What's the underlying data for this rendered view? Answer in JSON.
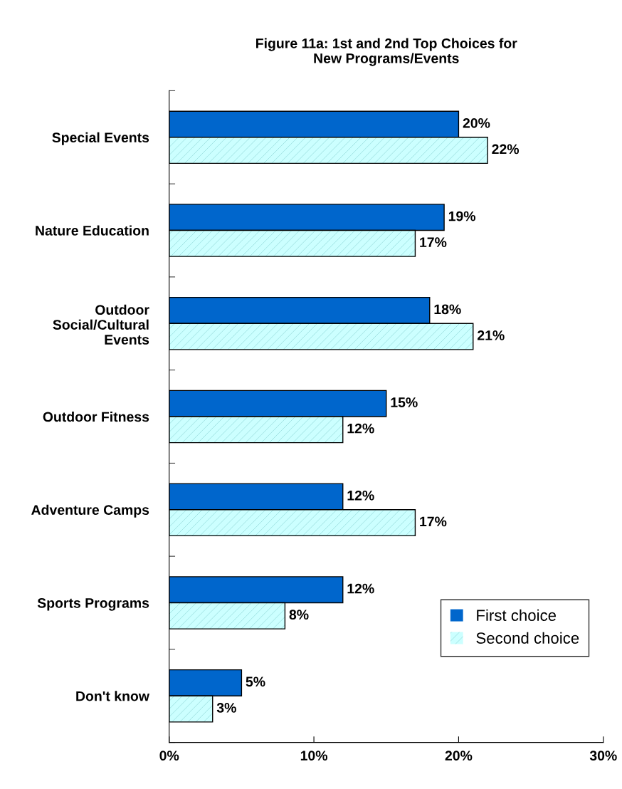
{
  "chart_data": {
    "type": "bar",
    "orientation": "horizontal",
    "title": "Figure 11a: 1st and 2nd Top Choices for\nNew Programs/Events",
    "categories": [
      "Special Events",
      "Nature Education",
      "Outdoor\nSocial/Cultural\nEvents",
      "Outdoor Fitness",
      "Adventure Camps",
      "Sports Programs",
      "Don't know"
    ],
    "series": [
      {
        "name": "First choice",
        "color": "#0066cc",
        "values": [
          20,
          19,
          18,
          15,
          12,
          12,
          5
        ],
        "value_labels": [
          "20%",
          "19%",
          "18%",
          "15%",
          "12%",
          "12%",
          "5%"
        ]
      },
      {
        "name": "Second choice",
        "color": "#ccffff",
        "values": [
          22,
          17,
          21,
          12,
          17,
          8,
          3
        ],
        "value_labels": [
          "22%",
          "17%",
          "21%",
          "12%",
          "17%",
          "8%",
          "3%"
        ]
      }
    ],
    "xlim": [
      0,
      30
    ],
    "xticks": [
      {
        "value": 0,
        "label": "0%"
      },
      {
        "value": 10,
        "label": "10%"
      },
      {
        "value": 20,
        "label": "20%"
      },
      {
        "value": 30,
        "label": "30%"
      }
    ],
    "grid": false,
    "legend": "bottom right"
  }
}
